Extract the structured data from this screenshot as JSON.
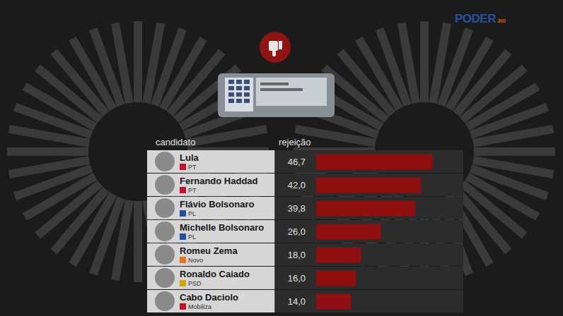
{
  "chart_data": {
    "type": "bar",
    "orientation": "horizontal",
    "column_headers": [
      "candidato",
      "rejeição"
    ],
    "categories": [
      "Lula",
      "Fernando Haddad",
      "Flávio Bolsonaro",
      "Michelle Bolsonaro",
      "Romeu Zema",
      "Ronaldo Caiado",
      "Cabo Daciolo"
    ],
    "parties": [
      "PT",
      "PT",
      "PL",
      "PL",
      "Novo",
      "PSD",
      "Mobiliza"
    ],
    "values": [
      46.7,
      42.0,
      39.8,
      26.0,
      18.0,
      16.0,
      14.0
    ],
    "value_labels": [
      "46,7",
      "42,0",
      "39,8",
      "26,0",
      "18,0",
      "16,0",
      "14,0"
    ],
    "color": "#8e0f0f",
    "xlim": [
      0,
      50
    ],
    "tick_labels": false,
    "data_labels": true,
    "grid": false
  },
  "logo": {
    "text": "PODER",
    "sub": "360"
  }
}
